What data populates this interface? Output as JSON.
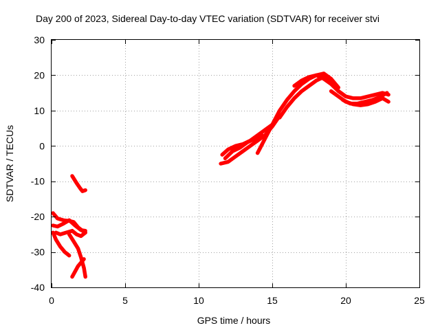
{
  "chart_data": {
    "type": "scatter",
    "title": "Day 200 of 2023, Sidereal Day-to-day VTEC variation (SDTVAR) for receiver stvi",
    "xlabel": "GPS time / hours",
    "ylabel": "SDTVAR / TECUs",
    "xlim": [
      0,
      25
    ],
    "ylim": [
      -40,
      30
    ],
    "xticks": [
      0,
      5,
      10,
      15,
      20,
      25
    ],
    "yticks": [
      -40,
      -30,
      -20,
      -10,
      0,
      10,
      20,
      30
    ],
    "xtick_labels": [
      "0",
      "5",
      "10",
      "15",
      "20",
      "25"
    ],
    "ytick_labels": [
      "-40",
      "-30",
      "-20",
      "-10",
      "0",
      "10",
      "20",
      "30"
    ],
    "grid": true,
    "legend": "none",
    "series_color": "#ff0000",
    "series": [
      {
        "x": [
          1.4,
          1.7,
          1.95,
          2.1,
          2.3
        ],
        "y": [
          -8.5,
          -10.5,
          -12.0,
          -12.8,
          -12.5
        ]
      },
      {
        "x": [
          0.1,
          0.4,
          0.8,
          1.2,
          1.5,
          1.8,
          2.1,
          2.3
        ],
        "y": [
          -19.0,
          -20.5,
          -21.0,
          -21.2,
          -21.5,
          -23.0,
          -24.0,
          -24.5
        ]
      },
      {
        "x": [
          0.1,
          0.4,
          0.8,
          1.2,
          1.6,
          2.0,
          2.3
        ],
        "y": [
          -22.5,
          -22.8,
          -22.0,
          -21.0,
          -22.5,
          -23.8,
          -24.0
        ]
      },
      {
        "x": [
          0.1,
          0.3,
          0.6,
          0.9,
          1.2
        ],
        "y": [
          -24.5,
          -26.5,
          -28.5,
          -30.0,
          -31.0
        ]
      },
      {
        "x": [
          0.3,
          0.6,
          1.0,
          1.4,
          1.7,
          2.0,
          2.3
        ],
        "y": [
          -24.5,
          -25.0,
          -24.5,
          -24.0,
          -25.0,
          -25.5,
          -24.5
        ]
      },
      {
        "x": [
          1.2,
          1.5,
          1.8,
          2.0,
          2.2,
          2.3
        ],
        "y": [
          -25.0,
          -27.0,
          -29.0,
          -31.5,
          -34.5,
          -37.0
        ]
      },
      {
        "x": [
          1.4,
          1.6,
          1.8,
          2.0,
          2.2
        ],
        "y": [
          -37.0,
          -35.5,
          -34.0,
          -33.0,
          -32.0
        ]
      },
      {
        "x": [
          11.5,
          12.0,
          12.5,
          13.0,
          13.5,
          14.0,
          14.5,
          15.0,
          15.5
        ],
        "y": [
          -5.0,
          -4.5,
          -3.0,
          -1.5,
          0.0,
          1.5,
          3.0,
          5.5,
          8.5
        ]
      },
      {
        "x": [
          11.6,
          12.0,
          12.5,
          13.0,
          13.5,
          14.0,
          14.5,
          15.0
        ],
        "y": [
          -2.5,
          -1.0,
          0.0,
          0.5,
          1.5,
          3.0,
          4.5,
          6.0
        ]
      },
      {
        "x": [
          11.8,
          12.3,
          12.8,
          13.3,
          13.8,
          14.3
        ],
        "y": [
          -3.5,
          -1.5,
          -0.5,
          1.0,
          2.0,
          3.0
        ]
      },
      {
        "x": [
          14.0,
          14.5,
          15.0,
          15.5,
          16.0,
          16.5,
          17.0,
          17.5,
          18.0,
          18.5,
          19.0,
          19.5
        ],
        "y": [
          -2.0,
          2.0,
          6.0,
          10.0,
          13.0,
          15.5,
          17.5,
          19.0,
          20.0,
          20.5,
          19.0,
          16.5
        ]
      },
      {
        "x": [
          15.5,
          16.0,
          16.5,
          17.0,
          17.5,
          18.0,
          18.5,
          19.0,
          19.5,
          20.0
        ],
        "y": [
          8.0,
          11.0,
          13.5,
          15.5,
          17.0,
          18.5,
          19.5,
          18.0,
          15.5,
          14.0
        ]
      },
      {
        "x": [
          16.5,
          17.0,
          17.5,
          18.0,
          18.5,
          19.0,
          19.5,
          20.0,
          20.5,
          21.0,
          21.5,
          22.0,
          22.5,
          22.9
        ],
        "y": [
          17.0,
          18.5,
          19.5,
          20.0,
          19.0,
          17.5,
          15.5,
          14.0,
          13.5,
          13.5,
          14.0,
          14.5,
          15.0,
          14.5
        ]
      },
      {
        "x": [
          19.0,
          19.5,
          20.0,
          20.5,
          21.0,
          21.5,
          22.0,
          22.5,
          22.9
        ],
        "y": [
          15.5,
          14.0,
          12.5,
          11.8,
          11.5,
          11.8,
          12.5,
          13.5,
          12.5
        ]
      },
      {
        "x": [
          19.8,
          20.3,
          20.8,
          21.3,
          21.8,
          22.3,
          22.8
        ],
        "y": [
          13.0,
          12.0,
          12.0,
          12.5,
          13.0,
          13.8,
          15.0
        ]
      }
    ]
  }
}
